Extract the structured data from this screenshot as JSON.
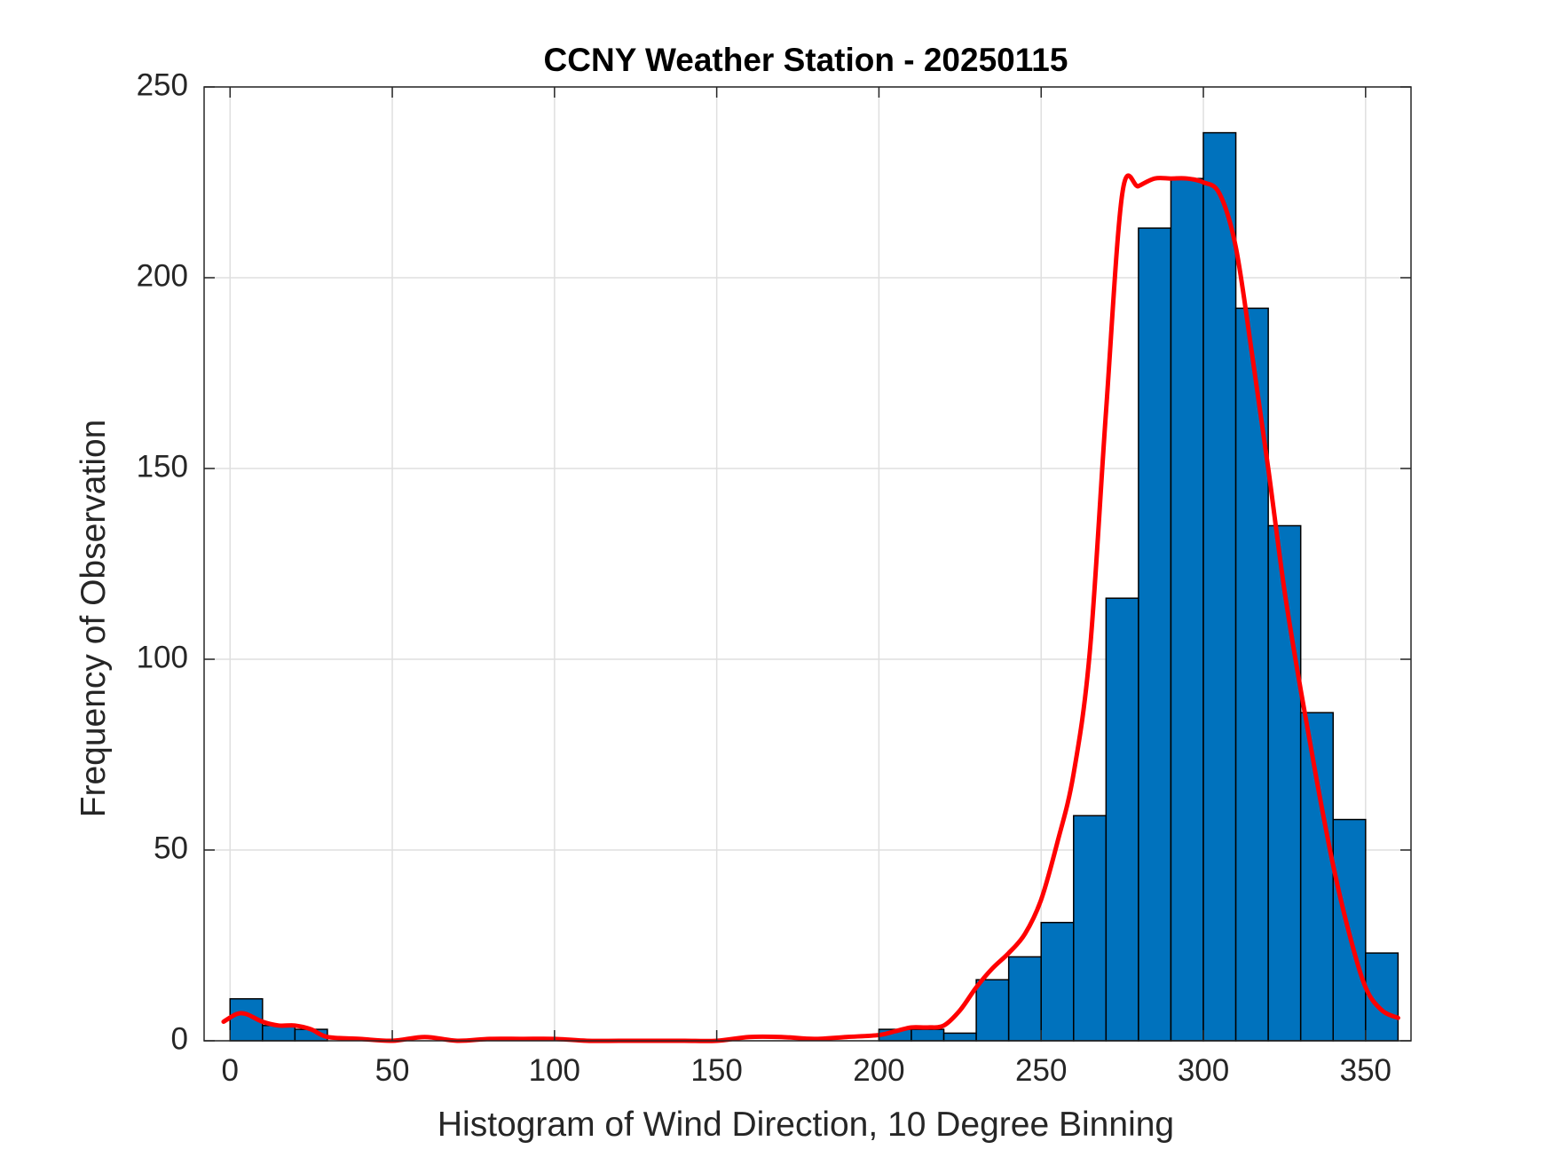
{
  "chart_data": {
    "type": "bar",
    "title": "CCNY Weather Station - 20250115",
    "xlabel": "Histogram of Wind Direction, 10 Degree Binning",
    "ylabel": "Frequency of Observation",
    "xlim": [
      -8,
      364
    ],
    "ylim": [
      0,
      250
    ],
    "xticks": [
      0,
      50,
      100,
      150,
      200,
      250,
      300,
      350
    ],
    "yticks": [
      0,
      50,
      100,
      150,
      200,
      250
    ],
    "grid": true,
    "bin_width": 10,
    "bin_edges": [
      0,
      10,
      20,
      30,
      40,
      50,
      60,
      70,
      80,
      90,
      100,
      110,
      120,
      130,
      140,
      150,
      160,
      170,
      180,
      190,
      200,
      210,
      220,
      230,
      240,
      250,
      260,
      270,
      280,
      290,
      300,
      310,
      320,
      330,
      340,
      350,
      360
    ],
    "values": [
      11,
      4,
      3,
      0,
      0,
      0,
      0,
      0,
      0,
      0,
      0,
      0,
      0,
      0,
      0,
      0,
      0,
      0,
      0,
      0,
      3,
      3,
      2,
      16,
      22,
      31,
      59,
      116,
      213,
      226,
      238,
      192,
      135,
      86,
      58,
      23
    ],
    "bar_color": "#0072bd",
    "curve": {
      "color": "#ff0000",
      "x": [
        -2,
        2,
        5,
        10,
        15,
        20,
        25,
        30,
        40,
        50,
        60,
        70,
        80,
        90,
        100,
        110,
        120,
        130,
        140,
        150,
        160,
        170,
        180,
        190,
        200,
        205,
        210,
        215,
        220,
        225,
        230,
        235,
        240,
        245,
        250,
        255,
        260,
        265,
        270,
        275,
        280,
        285,
        290,
        295,
        300,
        305,
        310,
        315,
        320,
        325,
        330,
        335,
        340,
        345,
        350,
        355,
        360
      ],
      "y": [
        5,
        7,
        7,
        5,
        4,
        4,
        3,
        1,
        0.5,
        0,
        1,
        0,
        0.5,
        0.5,
        0.5,
        0,
        0,
        0,
        0,
        0,
        1,
        1,
        0.5,
        1,
        1.5,
        2.5,
        3.5,
        3.5,
        4,
        8,
        14,
        19,
        23,
        28,
        37,
        52,
        70,
        102,
        165,
        222,
        224,
        226,
        226,
        226,
        225,
        222,
        208,
        180,
        150,
        118,
        92,
        68,
        46,
        28,
        14,
        8,
        6
      ]
    }
  }
}
